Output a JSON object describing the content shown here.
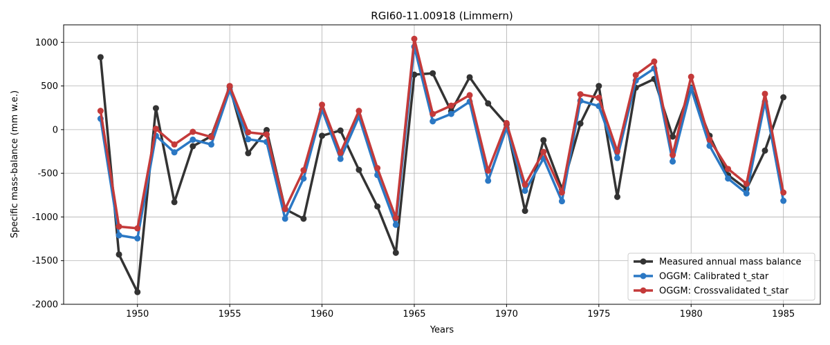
{
  "chart_data": {
    "type": "line",
    "title": "RGI60-11.00918 (Limmern)",
    "xlabel": "Years",
    "ylabel": "Specific mass-balance (mm w.e.)",
    "xlim": [
      1946,
      1987
    ],
    "ylim": [
      -2000,
      1200
    ],
    "xticks": [
      1950,
      1955,
      1960,
      1965,
      1970,
      1975,
      1980,
      1985
    ],
    "yticks": [
      -2000,
      -1500,
      -1000,
      -500,
      0,
      500,
      1000
    ],
    "grid": true,
    "legend_position": "lower-right",
    "x": [
      1948,
      1949,
      1950,
      1951,
      1952,
      1953,
      1954,
      1955,
      1956,
      1957,
      1958,
      1959,
      1960,
      1961,
      1962,
      1963,
      1964,
      1965,
      1966,
      1967,
      1968,
      1969,
      1970,
      1971,
      1972,
      1973,
      1974,
      1975,
      1976,
      1977,
      1978,
      1979,
      1980,
      1981,
      1982,
      1983,
      1984,
      1985
    ],
    "series": [
      {
        "name": "Measured annual mass balance",
        "color": "#333333",
        "values": [
          830,
          -1430,
          -1860,
          245,
          -830,
          -190,
          -75,
          490,
          -270,
          -5,
          -910,
          -1020,
          -70,
          -10,
          -460,
          -880,
          -1410,
          630,
          645,
          210,
          600,
          300,
          60,
          -930,
          -120,
          -680,
          70,
          500,
          -770,
          480,
          580,
          -80,
          480,
          -70,
          -520,
          -680,
          -240,
          370
        ]
      },
      {
        "name": "OGGM: Calibrated t_star",
        "color": "#2b78c4",
        "values": [
          125,
          -1210,
          -1245,
          -70,
          -260,
          -115,
          -170,
          455,
          -110,
          -140,
          -1020,
          -560,
          230,
          -335,
          150,
          -520,
          -1090,
          950,
          95,
          180,
          320,
          -585,
          20,
          -700,
          -330,
          -820,
          330,
          270,
          -325,
          560,
          700,
          -365,
          470,
          -185,
          -560,
          -730,
          320,
          -815
        ]
      },
      {
        "name": "OGGM: Crossvalidated t_star",
        "color": "#c43a3a",
        "values": [
          215,
          -1110,
          -1130,
          10,
          -170,
          -25,
          -85,
          500,
          -30,
          -55,
          -910,
          -465,
          285,
          -265,
          215,
          -440,
          -1010,
          1040,
          180,
          275,
          395,
          -470,
          75,
          -630,
          -255,
          -720,
          405,
          365,
          -250,
          625,
          780,
          -290,
          605,
          -115,
          -450,
          -620,
          410,
          -720
        ]
      }
    ]
  }
}
